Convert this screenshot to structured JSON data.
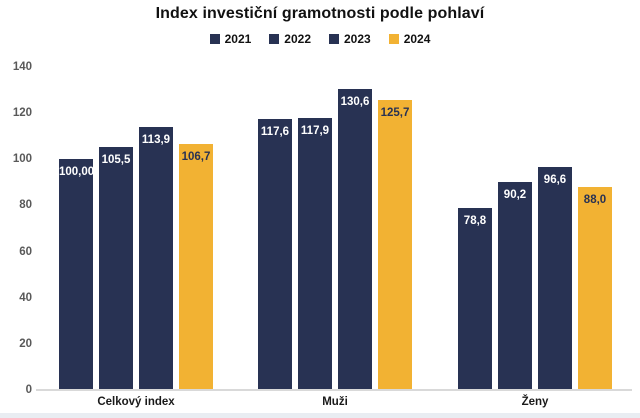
{
  "title": "Index investiční gramotnosti podle pohlaví",
  "colors": {
    "navy": "#283253",
    "gold": "#F2B233",
    "axis_line": "#d9d9d9",
    "tick_text": "#595959",
    "label_on_navy": "#ffffff",
    "label_on_gold": "#283253",
    "background": "#ffffff",
    "bottom_strip": "#e9edf2"
  },
  "chart_data": {
    "type": "bar",
    "title": "Index investiční gramotnosti podle pohlaví",
    "categories": [
      "Celkový index",
      "Muži",
      "Ženy"
    ],
    "series": [
      {
        "name": "2021",
        "color": "#283253",
        "label_color": "#ffffff",
        "values": [
          100.0,
          117.6,
          78.8
        ],
        "labels": [
          "100,00",
          "117,6",
          "78,8"
        ]
      },
      {
        "name": "2022",
        "color": "#283253",
        "label_color": "#ffffff",
        "values": [
          105.5,
          117.9,
          90.2
        ],
        "labels": [
          "105,5",
          "117,9",
          "90,2"
        ]
      },
      {
        "name": "2023",
        "color": "#283253",
        "label_color": "#ffffff",
        "values": [
          113.9,
          130.6,
          96.6
        ],
        "labels": [
          "113,9",
          "130,6",
          "96,6"
        ]
      },
      {
        "name": "2024",
        "color": "#F2B233",
        "label_color": "#283253",
        "values": [
          106.7,
          125.7,
          88.0
        ],
        "labels": [
          "106,7",
          "125,7",
          "88,0"
        ]
      }
    ],
    "xlabel": "",
    "ylabel": "",
    "ylim": [
      0,
      140
    ],
    "yticks": [
      "0",
      "20",
      "40",
      "60",
      "80",
      "100",
      "120",
      "140"
    ],
    "grid": false,
    "legend_position": "top"
  }
}
